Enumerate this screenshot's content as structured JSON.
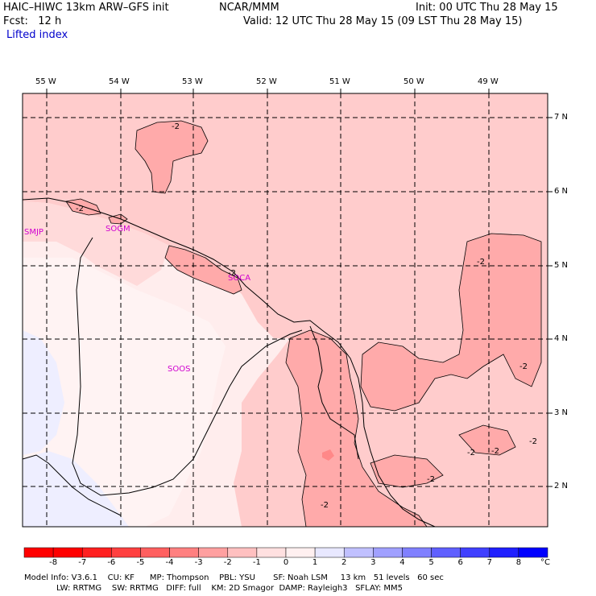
{
  "header": {
    "model": "HAIC–HIWC 13km ARW–GFS init",
    "org": "NCAR/MMM",
    "init": "Init: 00 UTC Thu 28 May 15",
    "fcst": "Fcst:   12 h",
    "valid": "Valid: 12 UTC Thu 28 May 15 (09 LST Thu 28 May 15)",
    "field": "Lifted index"
  },
  "axes": {
    "lon_labels": [
      "55 W",
      "54 W",
      "53 W",
      "52 W",
      "51 W",
      "50 W",
      "49 W"
    ],
    "lat_labels": [
      "7 N",
      "6 N",
      "5 N",
      "4 N",
      "3 N",
      "2 N"
    ]
  },
  "stations": [
    "SMJP",
    "SOGM",
    "SOCA",
    "SOOS"
  ],
  "contour_labels": [
    "-2",
    "-2",
    "-2",
    "-2",
    "-2",
    "-2",
    "-2",
    "-2",
    "-2",
    "-2"
  ],
  "colorbar": {
    "unit": "°C",
    "labels": [
      "-8",
      "-7",
      "-6",
      "-5",
      "-4",
      "-3",
      "-2",
      "-1",
      "0",
      "1",
      "2",
      "3",
      "4",
      "5",
      "6",
      "7",
      "8"
    ],
    "colors": [
      "#ff0000",
      "#ff2020",
      "#ff4040",
      "#ff6060",
      "#ff8080",
      "#ffa0a0",
      "#ffc0c0",
      "#ffe0e0",
      "#fff0f0",
      "#e8e8ff",
      "#c0c0ff",
      "#a0a0ff",
      "#8080ff",
      "#6060ff",
      "#4040ff",
      "#2020ff",
      "#0000ff"
    ]
  },
  "footer": {
    "line1": "Model Info: V3.6.1    CU: KF      MP: Thompson    PBL: YSU       SF: Noah LSM     13 km   51 levels   60 sec",
    "line2": "LW: RRTMG    SW: RRTMG   DIFF: full    KM: 2D Smagor  DAMP: Rayleigh3   SFLAY: MM5"
  }
}
